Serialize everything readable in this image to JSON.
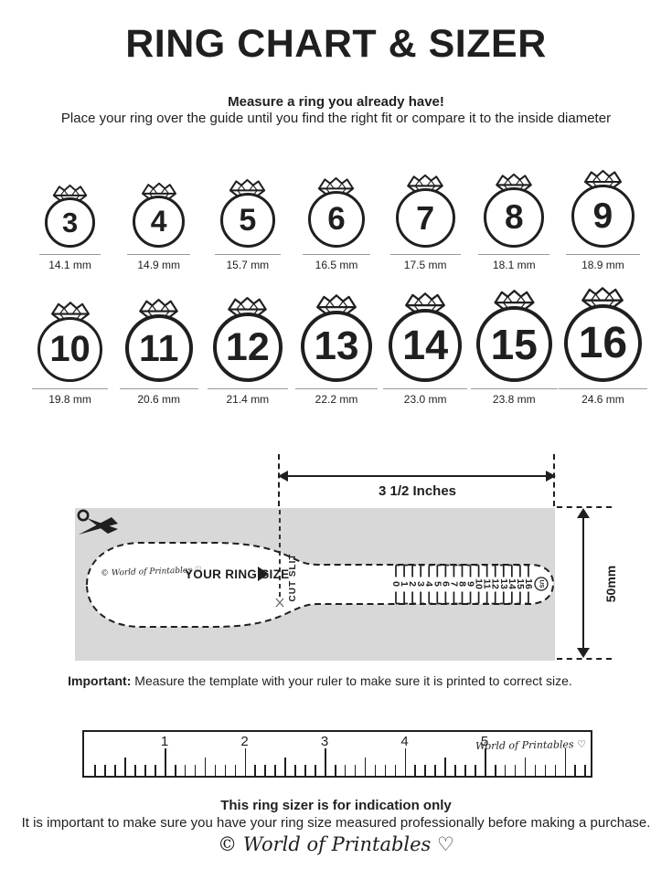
{
  "colors": {
    "ink": "#1f1f1f",
    "box_gray": "#d8d8d8",
    "underline_gray": "#9a9a9a"
  },
  "header": {
    "title": "RING CHART & SIZER",
    "subtitle_bold": "Measure a ring you already have!",
    "subtitle": "Place your ring over the guide until you find the right fit or compare it to the inside diameter"
  },
  "rings": [
    {
      "size": "3",
      "label": "14.1 mm",
      "mm": 14.1
    },
    {
      "size": "4",
      "label": "14.9 mm",
      "mm": 14.9
    },
    {
      "size": "5",
      "label": "15.7 mm",
      "mm": 15.7
    },
    {
      "size": "6",
      "label": "16.5 mm",
      "mm": 16.5
    },
    {
      "size": "7",
      "label": "17.5 mm",
      "mm": 17.5
    },
    {
      "size": "8",
      "label": "18.1 mm",
      "mm": 18.1
    },
    {
      "size": "9",
      "label": "18.9 mm",
      "mm": 18.9
    },
    {
      "size": "10",
      "label": "19.8 mm",
      "mm": 19.8
    },
    {
      "size": "11",
      "label": "20.6 mm",
      "mm": 20.6
    },
    {
      "size": "12",
      "label": "21.4 mm",
      "mm": 21.4
    },
    {
      "size": "13",
      "label": "22.2 mm",
      "mm": 22.2
    },
    {
      "size": "14",
      "label": "23.0 mm",
      "mm": 23.0
    },
    {
      "size": "15",
      "label": "23.8 mm",
      "mm": 23.8
    },
    {
      "size": "16",
      "label": "24.6 mm",
      "mm": 24.6
    }
  ],
  "sizer": {
    "dimension_label": "3 1/2 Inches",
    "height_label": "50mm",
    "brand_small": "© World of Printables ♡",
    "your_ring_size_label": "YOUR RING SIZE",
    "cut_slit_label": "CUT SLIT",
    "scale_sizes": [
      "0",
      "1",
      "2",
      "3",
      "4",
      "5",
      "6",
      "7",
      "8",
      "9",
      "10",
      "11",
      "12",
      "13",
      "14",
      "15",
      "16"
    ],
    "us_label": "US"
  },
  "important": {
    "bold": "Important:",
    "text": " Measure the template with your ruler to make sure it is printed to correct size."
  },
  "ruler": {
    "unit_numbers": [
      "1",
      "2",
      "3",
      "4",
      "5"
    ],
    "brand": "World of Printables ♡"
  },
  "footer": {
    "bold": "This ring sizer is for indication only",
    "text": "It is important to make sure you have your ring size measured professionally before making a purchase.",
    "brand": "© World of Printables ♡"
  }
}
